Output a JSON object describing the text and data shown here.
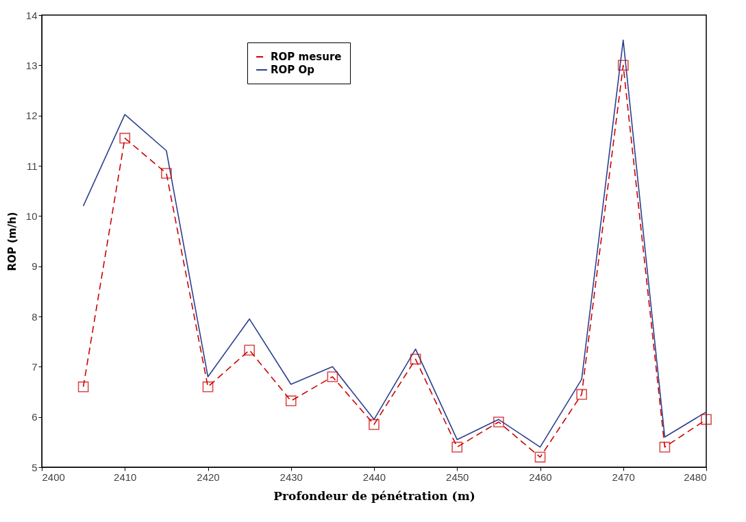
{
  "chart_data": {
    "type": "line",
    "xlabel": "Profondeur de pénétration (m)",
    "ylabel": "ROP (m/h)",
    "x": [
      2405,
      2410,
      2415,
      2420,
      2425,
      2430,
      2435,
      2440,
      2445,
      2450,
      2455,
      2460,
      2465,
      2470,
      2475,
      2480
    ],
    "series": [
      {
        "name": "ROP mesure",
        "color": "#cc0000",
        "line_style": "dashed",
        "marker": "square",
        "values": [
          6.6,
          11.55,
          10.85,
          6.6,
          7.33,
          6.32,
          6.8,
          5.85,
          7.15,
          5.4,
          5.9,
          5.2,
          6.45,
          13.0,
          5.4,
          5.95
        ]
      },
      {
        "name": "ROP Op",
        "color": "#2b3f8f",
        "line_style": "solid",
        "marker": "none",
        "values": [
          10.2,
          12.02,
          11.3,
          6.8,
          7.95,
          6.65,
          7.0,
          5.95,
          7.35,
          5.55,
          5.95,
          5.4,
          6.75,
          13.5,
          5.6,
          6.1
        ]
      }
    ],
    "xlim": [
      2400,
      2480
    ],
    "xticks": [
      2400,
      2410,
      2420,
      2430,
      2440,
      2450,
      2460,
      2470,
      2480
    ],
    "ylim": [
      5,
      14
    ],
    "yticks": [
      5,
      6,
      7,
      8,
      9,
      10,
      11,
      12,
      13,
      14
    ],
    "grid": false,
    "legend": "top"
  }
}
